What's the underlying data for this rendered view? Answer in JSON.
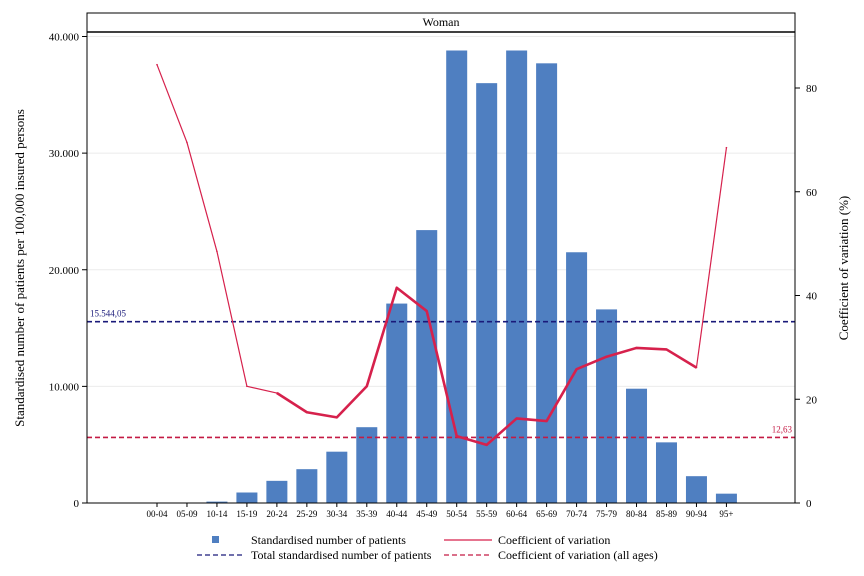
{
  "chart_data": {
    "type": "bar",
    "panel_title": "Woman",
    "categories": [
      "00-04",
      "05-09",
      "10-14",
      "15-19",
      "20-24",
      "25-29",
      "30-34",
      "35-39",
      "40-44",
      "45-49",
      "50-54",
      "55-59",
      "60-64",
      "65-69",
      "70-74",
      "75-79",
      "80-84",
      "85-89",
      "90-94",
      "95+"
    ],
    "series": [
      {
        "name": "Standardised number of patients",
        "axis": "left",
        "kind": "bar",
        "color": "#4f7fc1",
        "values": [
          0,
          30,
          120,
          900,
          1900,
          2900,
          4400,
          6500,
          17100,
          23400,
          38800,
          36000,
          38800,
          37700,
          21500,
          16600,
          9800,
          5200,
          2300,
          800
        ]
      },
      {
        "name": "Coefficient of variation",
        "axis": "right",
        "kind": "line",
        "color": "#d6214c",
        "values": [
          84.5,
          69.5,
          48.5,
          22.5,
          21.2,
          17.5,
          16.5,
          22.5,
          41.5,
          37.0,
          12.9,
          11.2,
          16.3,
          15.8,
          25.8,
          28.2,
          29.9,
          29.6,
          26.1,
          68.5
        ]
      }
    ],
    "reference_lines": [
      {
        "name": "Total standardised number of patients",
        "axis": "left",
        "value": 15544.05,
        "label": "15.544,05",
        "color": "#1a1a7a",
        "style": "dashed"
      },
      {
        "name": "Coefficient of variation (all ages)",
        "axis": "right",
        "value": 12.63,
        "label": "12,63",
        "color": "#c41a44",
        "style": "dashed"
      }
    ],
    "ylabel": "Standardised number of patients per 100,000 insured persons",
    "y2label": "Coefficient of variation (%)",
    "ylim": [
      0,
      40000
    ],
    "y2lim": [
      0,
      90
    ],
    "yticks": [
      0,
      10000,
      20000,
      30000,
      40000
    ],
    "ytick_labels": [
      "0",
      "10.000",
      "20.000",
      "30.000",
      "40.000"
    ],
    "y2ticks": [
      0,
      20,
      40,
      60,
      80
    ],
    "y2tick_labels": [
      "0",
      "20",
      "40",
      "60",
      "80"
    ],
    "grid": true,
    "legend_position": "bottom",
    "legend": [
      {
        "label": "Standardised number of patients",
        "type": "square",
        "color": "#4f7fc1"
      },
      {
        "label": "Coefficient of variation",
        "type": "line",
        "color": "#d6214c"
      },
      {
        "label": "Total standardised number of patients",
        "type": "dashed",
        "color": "#1a1a7a"
      },
      {
        "label": "Coefficient of variation (all ages)",
        "type": "dashed",
        "color": "#c41a44"
      }
    ]
  }
}
